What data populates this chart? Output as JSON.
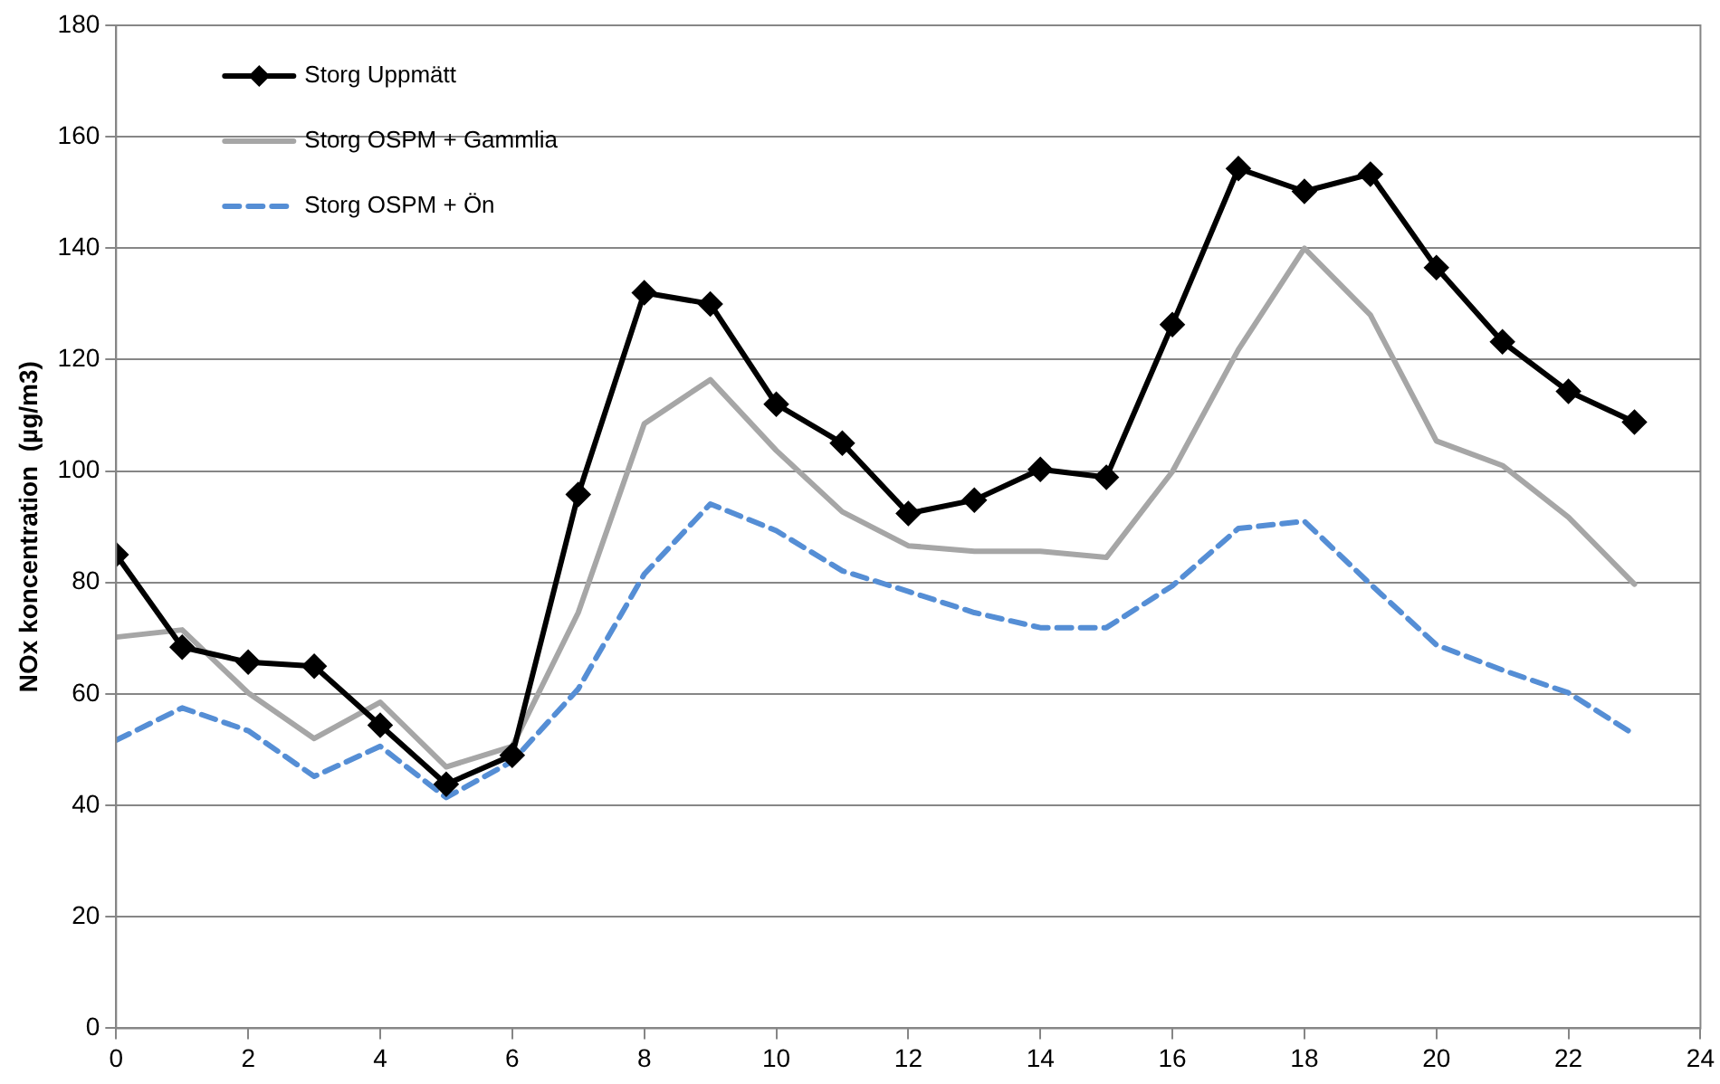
{
  "chart_data": {
    "type": "line",
    "ylabel": "NOx koncentration  (µg/m3)",
    "x": [
      0,
      1,
      2,
      3,
      4,
      5,
      6,
      7,
      8,
      9,
      10,
      11,
      12,
      13,
      14,
      15,
      16,
      17,
      18,
      19,
      20,
      21,
      22,
      23
    ],
    "xlim": [
      0,
      24
    ],
    "xticks": [
      0,
      2,
      4,
      6,
      8,
      10,
      12,
      14,
      16,
      18,
      20,
      22,
      24
    ],
    "ylim": [
      0,
      180
    ],
    "yticks": [
      0,
      20,
      40,
      60,
      80,
      100,
      120,
      140,
      160,
      180
    ],
    "grid": "y",
    "legend": "top left",
    "series": [
      {
        "name": "Storg Uppmätt",
        "color": "#000000",
        "marker": "diamond",
        "line_style": "solid",
        "values": [
          85,
          68.4,
          65.7,
          65,
          54.4,
          43.8,
          49,
          95.8,
          132,
          130,
          112,
          105,
          92.4,
          94.8,
          100.3,
          98.9,
          126.3,
          154.3,
          150.2,
          153.3,
          136.5,
          123.2,
          114.3,
          108.8
        ]
      },
      {
        "name": "Storg OSPM + Gammlia",
        "color": "#a6a6a6",
        "marker": "none",
        "line_style": "solid",
        "values": [
          70.2,
          71.5,
          60.2,
          52,
          58.5,
          46.9,
          50.6,
          74.6,
          108.5,
          116.4,
          103.7,
          92.7,
          86.6,
          85.6,
          85.6,
          84.5,
          99.9,
          121.8,
          140,
          128,
          105.4,
          101,
          91.7,
          79.7
        ]
      },
      {
        "name": "Storg OSPM + Ön",
        "color": "#558ed5",
        "marker": "none",
        "line_style": "dashed",
        "values": [
          51.7,
          57.5,
          53.4,
          45.2,
          50.6,
          41.4,
          47.9,
          60.9,
          81.5,
          94.1,
          89.3,
          82.1,
          78.4,
          74.6,
          71.9,
          71.9,
          79.4,
          89.7,
          91,
          79.7,
          68.8,
          64.3,
          60.2,
          52.7
        ]
      }
    ]
  }
}
